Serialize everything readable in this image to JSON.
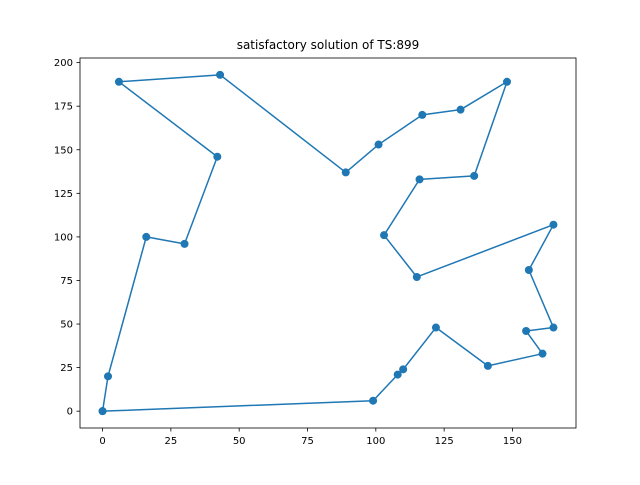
{
  "chart_data": {
    "type": "line",
    "title": "satisfactory solution of TS:899",
    "xlabel": "",
    "ylabel": "",
    "xlim": [
      -8.25,
      173.25
    ],
    "ylim": [
      -9.65,
      202.65
    ],
    "xticks": [
      0,
      25,
      50,
      75,
      100,
      125,
      150
    ],
    "yticks": [
      0,
      25,
      50,
      75,
      100,
      125,
      150,
      175,
      200
    ],
    "xtick_labels": [
      "0",
      "25",
      "50",
      "75",
      "100",
      "125",
      "150"
    ],
    "ytick_labels": [
      "0",
      "25",
      "50",
      "75",
      "100",
      "125",
      "150",
      "175",
      "200"
    ],
    "grid": false,
    "legend": "none",
    "series": [
      {
        "color": "#1f77b4",
        "marker": "circle",
        "x": [
          0,
          99,
          108,
          110,
          122,
          141,
          161,
          155,
          165,
          156,
          165,
          115,
          103,
          116,
          136,
          148,
          131,
          117,
          101,
          89,
          43,
          6,
          42,
          30,
          16,
          2,
          0
        ],
        "y": [
          0,
          6,
          21,
          24,
          48,
          26,
          33,
          46,
          48,
          81,
          107,
          77,
          101,
          133,
          135,
          189,
          173,
          170,
          153,
          137,
          193,
          189,
          146,
          96,
          100,
          20,
          0
        ]
      }
    ]
  }
}
